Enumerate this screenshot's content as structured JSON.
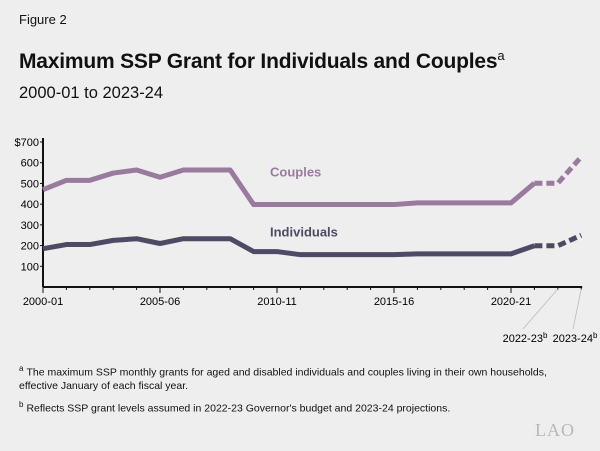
{
  "figure_label": "Figure 2",
  "title": "Maximum SSP Grant for Individuals and Couples",
  "title_note_marker": "a",
  "subtitle": "2000-01 to 2023-24",
  "notes": [
    {
      "marker": "a",
      "text": "The maximum SSP monthly grants for aged and disabled individuals and couples living in their own households, effective January of each fiscal year."
    },
    {
      "marker": "b",
      "text": "Reflects SSP grant levels assumed in 2022-23 Governor's budget and 2023-24 projections."
    }
  ],
  "logo": "LAO",
  "chart_data": {
    "type": "line",
    "x": [
      "2000-01",
      "2001-02",
      "2002-03",
      "2003-04",
      "2004-05",
      "2005-06",
      "2006-07",
      "2007-08",
      "2008-09",
      "2009-10",
      "2010-11",
      "2011-12",
      "2012-13",
      "2013-14",
      "2014-15",
      "2015-16",
      "2016-17",
      "2017-18",
      "2018-19",
      "2019-20",
      "2020-21",
      "2021-22",
      "2022-23",
      "2023-24"
    ],
    "x_tick_labels": [
      "2000-01",
      "2005-06",
      "2010-11",
      "2015-16",
      "2020-21"
    ],
    "x_callout_labels": [
      {
        "label": "2022-23",
        "marker": "b"
      },
      {
        "label": "2023-24",
        "marker": "b"
      }
    ],
    "y_ticks": [
      100,
      200,
      300,
      400,
      500,
      600,
      700
    ],
    "y_tick_labels": [
      "100",
      "200",
      "300",
      "400",
      "500",
      "600",
      "$700"
    ],
    "ylim": [
      0,
      700
    ],
    "grid": false,
    "dashed_from": "2021-22",
    "series": [
      {
        "name": "Couples",
        "color": "#9b7a9f",
        "values": [
          470,
          515,
          515,
          550,
          565,
          530,
          565,
          565,
          565,
          398,
          398,
          398,
          398,
          398,
          398,
          398,
          406,
          406,
          406,
          406,
          406,
          501,
          501,
          628
        ]
      },
      {
        "name": "Individuals",
        "color": "#4d4a63",
        "values": [
          185,
          205,
          205,
          225,
          233,
          210,
          233,
          233,
          233,
          171,
          171,
          156,
          156,
          156,
          156,
          156,
          160,
          160,
          160,
          160,
          160,
          199,
          199,
          250
        ]
      }
    ]
  }
}
